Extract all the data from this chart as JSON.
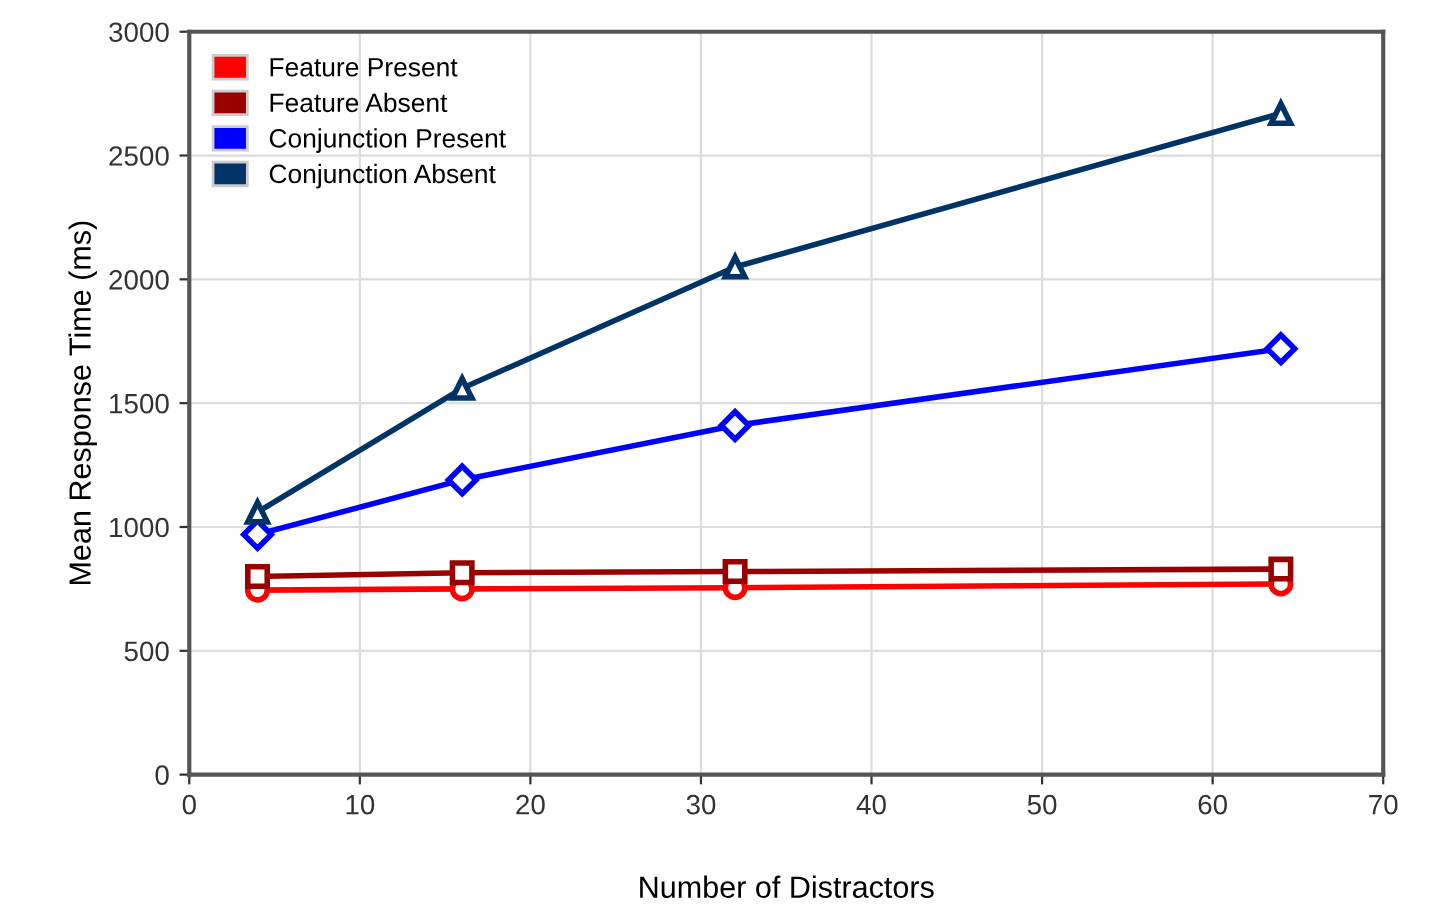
{
  "chart_data": {
    "type": "line",
    "xlabel": "Number of Distractors",
    "ylabel": "Mean Response Time (ms)",
    "x": [
      4,
      16,
      32,
      64
    ],
    "series": [
      {
        "name": "Feature Present",
        "color": "#ff0000",
        "marker": "circle",
        "values": [
          745,
          750,
          755,
          770
        ]
      },
      {
        "name": "Feature Absent",
        "color": "#990000",
        "marker": "square",
        "values": [
          800,
          815,
          820,
          830
        ]
      },
      {
        "name": "Conjunction Present",
        "color": "#0000ff",
        "marker": "diamond",
        "values": [
          970,
          1190,
          1410,
          1720
        ]
      },
      {
        "name": "Conjunction Absent",
        "color": "#003366",
        "marker": "triangle",
        "values": [
          1060,
          1560,
          2050,
          2670
        ]
      }
    ],
    "xlim": [
      0,
      70
    ],
    "xticks": [
      0,
      10,
      20,
      30,
      40,
      50,
      60,
      70
    ],
    "ylim": [
      0,
      3000
    ],
    "yticks": [
      0,
      500,
      1000,
      1500,
      2000,
      2500,
      3000
    ],
    "grid": true,
    "legend": "top left",
    "line_style": "solid"
  }
}
